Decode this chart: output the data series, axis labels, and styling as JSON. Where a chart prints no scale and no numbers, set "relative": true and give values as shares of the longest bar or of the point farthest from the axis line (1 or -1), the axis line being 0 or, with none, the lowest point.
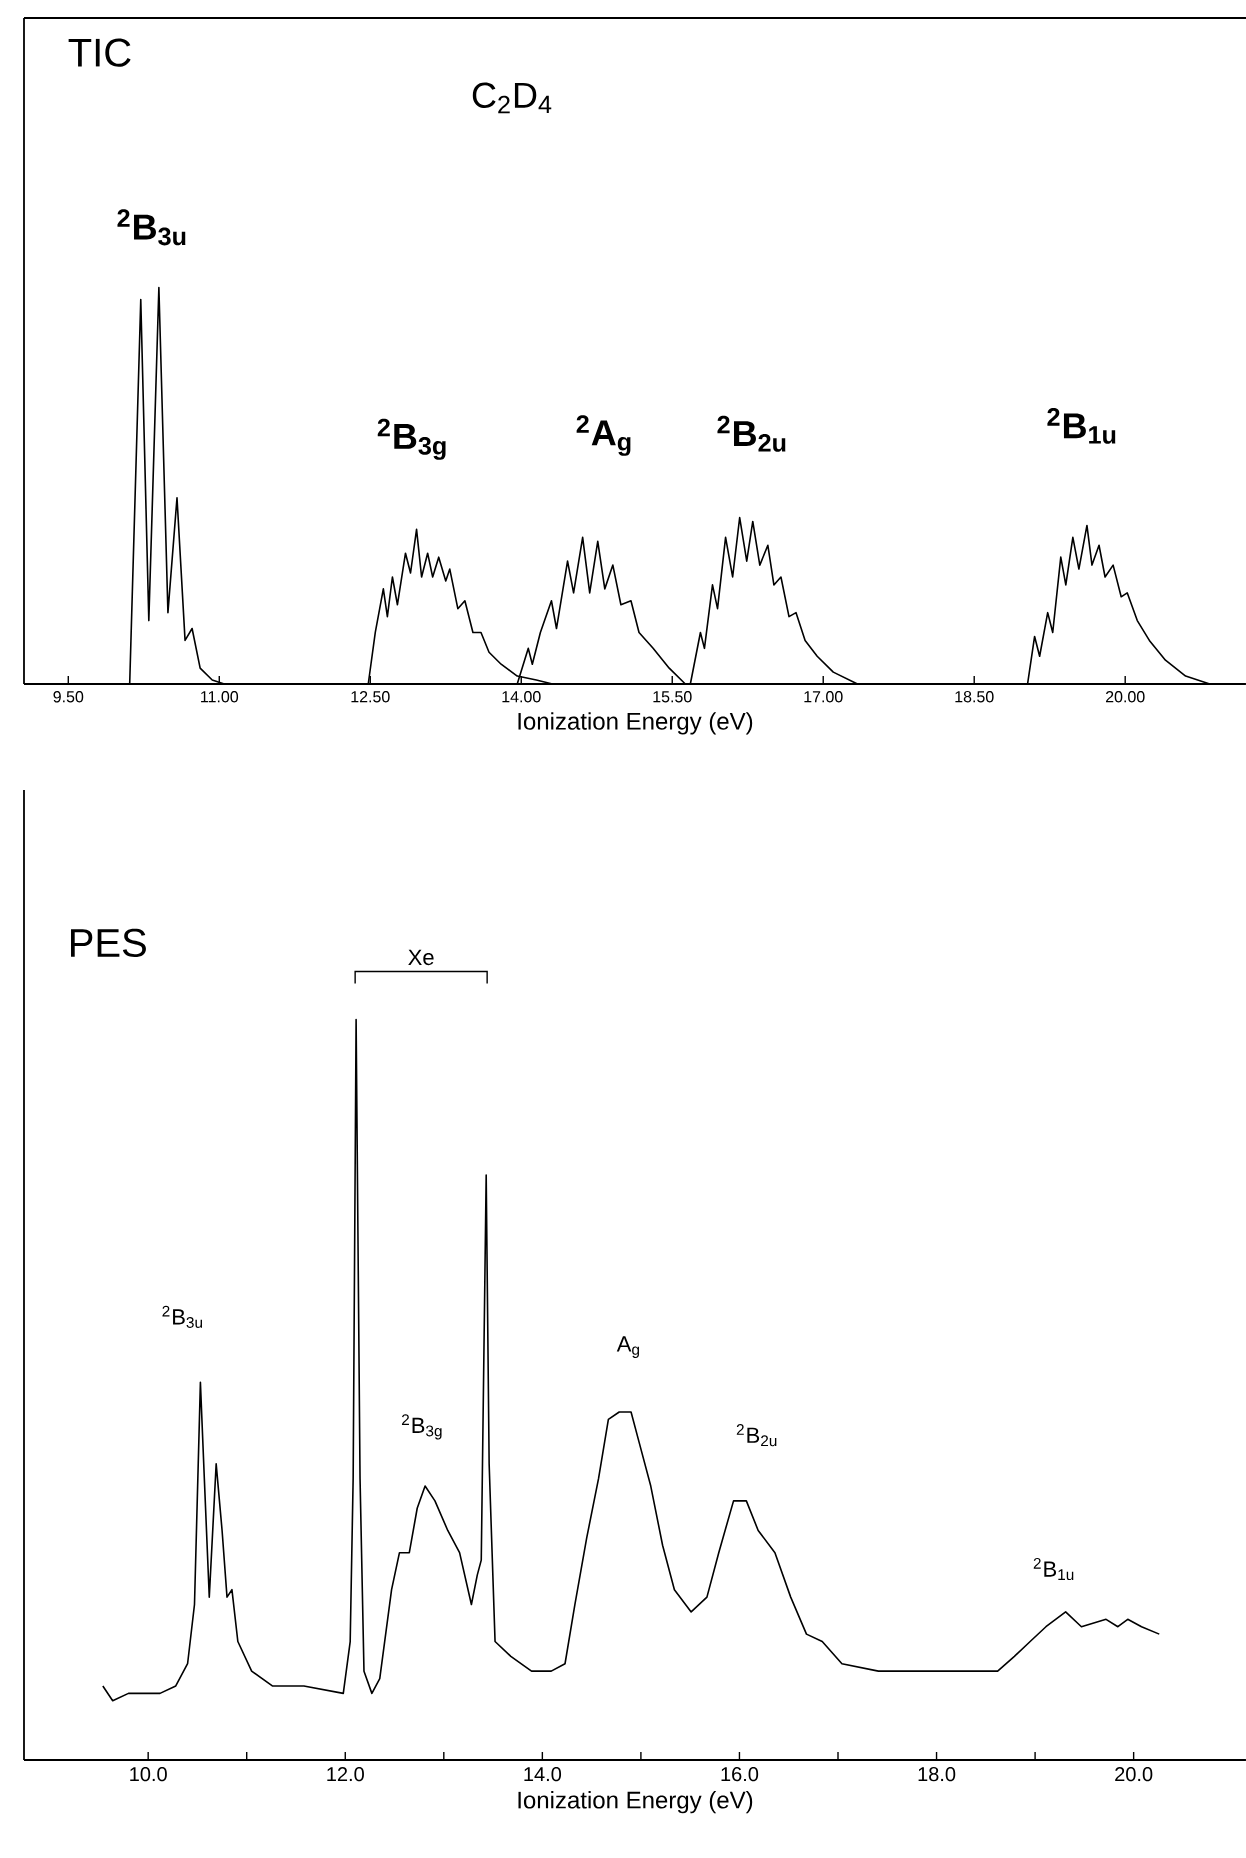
{
  "chart_data": [
    {
      "type": "line",
      "relative": true,
      "title": "TIC",
      "subtitle": "C$_{2}$D$_{4}$",
      "xlabel": "Ionization Energy (eV)",
      "xlim": [
        9.06,
        21.2
      ],
      "xticks": [
        {
          "value": 9.5,
          "label": "9.50"
        },
        {
          "value": 11,
          "label": "11.00"
        },
        {
          "value": 12.5,
          "label": "12.50"
        },
        {
          "value": 14,
          "label": "14.00"
        },
        {
          "value": 15.5,
          "label": "15.50"
        },
        {
          "value": 17,
          "label": "17.00"
        },
        {
          "value": 18.5,
          "label": "18.50"
        },
        {
          "value": 20,
          "label": "20.00"
        }
      ],
      "grid": false,
      "marker": "none",
      "line_style": "solid",
      "series": [
        {
          "color": "#000000",
          "x": [
            10.11,
            10.22,
            10.3,
            10.4,
            10.49,
            10.58,
            10.66,
            10.73,
            10.81,
            10.93,
            11.05
          ],
          "values": [
            0,
            0.97,
            0.16,
            1.0,
            0.18,
            0.47,
            0.11,
            0.14,
            0.04,
            0.01,
            0
          ]
        },
        {
          "color": "#000000",
          "x": [
            12.48,
            12.55,
            12.63,
            12.67,
            12.72,
            12.77,
            12.85,
            12.9,
            12.96,
            13.01,
            13.07,
            13.12,
            13.18,
            13.25,
            13.29,
            13.37,
            13.44,
            13.52,
            13.6,
            13.68,
            13.8,
            13.96,
            14.15,
            14.31
          ],
          "values": [
            0,
            0.13,
            0.24,
            0.17,
            0.27,
            0.2,
            0.33,
            0.28,
            0.39,
            0.27,
            0.33,
            0.27,
            0.32,
            0.26,
            0.29,
            0.19,
            0.21,
            0.13,
            0.13,
            0.08,
            0.05,
            0.02,
            0.01,
            0
          ]
        },
        {
          "color": "#000000",
          "x": [
            13.96,
            14.07,
            14.11,
            14.19,
            14.3,
            14.35,
            14.46,
            14.52,
            14.61,
            14.68,
            14.76,
            14.83,
            14.91,
            14.99,
            15.09,
            15.17,
            15.31,
            15.47,
            15.63
          ],
          "values": [
            0,
            0.09,
            0.05,
            0.13,
            0.21,
            0.14,
            0.31,
            0.23,
            0.37,
            0.23,
            0.36,
            0.24,
            0.3,
            0.2,
            0.21,
            0.13,
            0.09,
            0.04,
            0
          ]
        },
        {
          "color": "#000000",
          "x": [
            15.68,
            15.78,
            15.82,
            15.9,
            15.95,
            16.03,
            16.1,
            16.17,
            16.24,
            16.3,
            16.37,
            16.45,
            16.51,
            16.58,
            16.66,
            16.73,
            16.82,
            16.94,
            17.1,
            17.34
          ],
          "values": [
            0,
            0.13,
            0.09,
            0.25,
            0.19,
            0.37,
            0.27,
            0.42,
            0.31,
            0.41,
            0.3,
            0.35,
            0.25,
            0.27,
            0.17,
            0.18,
            0.11,
            0.07,
            0.03,
            0
          ]
        },
        {
          "color": "#000000",
          "x": [
            19.03,
            19.1,
            19.15,
            19.23,
            19.28,
            19.36,
            19.41,
            19.48,
            19.54,
            19.62,
            19.67,
            19.74,
            19.8,
            19.88,
            19.96,
            20.02,
            20.12,
            20.24,
            20.4,
            20.6,
            20.84
          ],
          "values": [
            0,
            0.12,
            0.07,
            0.18,
            0.13,
            0.32,
            0.25,
            0.37,
            0.29,
            0.4,
            0.3,
            0.35,
            0.27,
            0.3,
            0.22,
            0.23,
            0.16,
            0.11,
            0.06,
            0.02,
            0
          ]
        }
      ],
      "annotations": [
        "$^{2}$B$_{3u}$",
        "$^{2}$B$_{3g}$",
        "$^{2}$A$_{g}$",
        "$^{2}$B$_{2u}$",
        "$^{2}$B$_{1u}$"
      ]
    },
    {
      "type": "line",
      "relative": true,
      "title": "PES",
      "xlabel": "Ionization Energy (eV)",
      "xlim": [
        8.74,
        21.14
      ],
      "xticks": [
        {
          "value": 10,
          "label": "10.0"
        },
        {
          "value": 11,
          "label": null
        },
        {
          "value": 12,
          "label": "12.0"
        },
        {
          "value": 13,
          "label": null
        },
        {
          "value": 14,
          "label": "14.0"
        },
        {
          "value": 15,
          "label": null
        },
        {
          "value": 16,
          "label": "16.0"
        },
        {
          "value": 17,
          "label": null
        },
        {
          "value": 18,
          "label": "18.0"
        },
        {
          "value": 19,
          "label": null
        },
        {
          "value": 20,
          "label": "20.0"
        }
      ],
      "grid": false,
      "marker": "none",
      "line_style": "solid",
      "series": [
        {
          "color": "#000000",
          "x": [
            9.54,
            9.64,
            9.8,
            10.12,
            10.28,
            10.4,
            10.47,
            10.53,
            10.57,
            10.62,
            10.69,
            10.75,
            10.8,
            10.85,
            10.91,
            11.05,
            11.26,
            11.58,
            11.98,
            12.05,
            12.08,
            12.11,
            12.15,
            12.19,
            12.27,
            12.35,
            12.47,
            12.55,
            12.65,
            12.73,
            12.81,
            12.91,
            13.04,
            13.16,
            13.28,
            13.34,
            13.38,
            13.43,
            13.46,
            13.52,
            13.68,
            13.89,
            14.09,
            14.23,
            14.33,
            14.45,
            14.57,
            14.67,
            14.78,
            14.9,
            14.98,
            15.1,
            15.22,
            15.34,
            15.51,
            15.67,
            15.79,
            15.94,
            16.07,
            16.19,
            16.36,
            16.52,
            16.68,
            16.84,
            17.04,
            17.41,
            17.81,
            18.22,
            18.62,
            18.79,
            18.95,
            19.11,
            19.31,
            19.47,
            19.72,
            19.84,
            19.94,
            20.08,
            20.26
          ],
          "values": [
            0.1,
            0.08,
            0.09,
            0.09,
            0.1,
            0.13,
            0.21,
            0.51,
            0.38,
            0.22,
            0.4,
            0.31,
            0.22,
            0.23,
            0.16,
            0.12,
            0.1,
            0.1,
            0.09,
            0.16,
            0.38,
            1.0,
            0.38,
            0.12,
            0.09,
            0.11,
            0.23,
            0.28,
            0.28,
            0.34,
            0.37,
            0.35,
            0.31,
            0.28,
            0.21,
            0.25,
            0.27,
            0.79,
            0.4,
            0.16,
            0.14,
            0.12,
            0.12,
            0.13,
            0.21,
            0.3,
            0.38,
            0.46,
            0.47,
            0.47,
            0.43,
            0.37,
            0.29,
            0.23,
            0.2,
            0.22,
            0.28,
            0.35,
            0.35,
            0.31,
            0.28,
            0.22,
            0.17,
            0.16,
            0.13,
            0.12,
            0.12,
            0.12,
            0.12,
            0.14,
            0.16,
            0.18,
            0.2,
            0.18,
            0.19,
            0.18,
            0.19,
            0.18,
            0.17
          ]
        }
      ],
      "annotations": [
        "$^{2}$B$_{3u}$",
        "Xe",
        "$^{2}$B$_{3g}$",
        "A$_{g}$",
        "$^{2}$B$_{2u}$",
        "$^{2}$B$_{1u}$"
      ]
    }
  ]
}
